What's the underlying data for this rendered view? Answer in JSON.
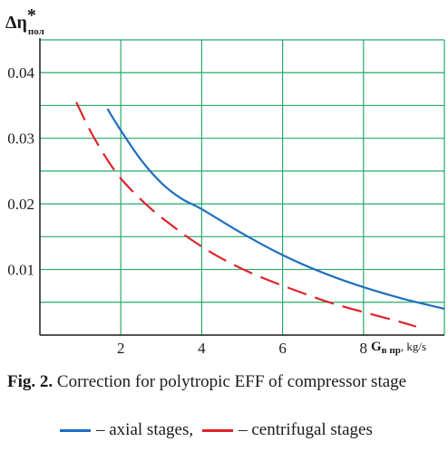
{
  "chart_data": {
    "type": "line",
    "title": "",
    "ylabel": {
      "main": "Δη",
      "sup": "*",
      "sub": "пол"
    },
    "xlabel": {
      "main": "G",
      "sub": "в пр",
      "unit": ", kg/s"
    },
    "xlim": [
      0,
      10
    ],
    "ylim": [
      0,
      0.045
    ],
    "x_ticks": [
      2,
      4,
      6,
      8
    ],
    "x_tick_labels": [
      "2",
      "4",
      "6",
      "8"
    ],
    "y_ticks": [
      0.01,
      0.02,
      0.03,
      0.04
    ],
    "y_tick_labels": [
      "0.01",
      "0.02",
      "0.03",
      "0.04"
    ],
    "x_grid": [
      0,
      2,
      4,
      6,
      8,
      10
    ],
    "y_grid": [
      0.005,
      0.01,
      0.015,
      0.02,
      0.025,
      0.03,
      0.035,
      0.04,
      0.045
    ],
    "grid": true,
    "grid_color": "#2aa86a",
    "legend_position": "bottom",
    "series": [
      {
        "name": "axial stages",
        "color": "#1f6fc0",
        "style": "solid",
        "x": [
          1.67,
          2.0,
          2.5,
          3.0,
          3.5,
          4.0,
          5.0,
          6.0,
          7.0,
          8.0,
          9.0,
          10.0
        ],
        "y": [
          0.0345,
          0.0312,
          0.0267,
          0.0232,
          0.0208,
          0.0192,
          0.0155,
          0.0122,
          0.0095,
          0.0073,
          0.0055,
          0.004
        ]
      },
      {
        "name": "centrifugal stages",
        "color": "#e0232b",
        "style": "dashed",
        "x": [
          0.9,
          1.3,
          1.8,
          2.2,
          2.7,
          3.2,
          3.8,
          4.4,
          5.1,
          5.8,
          6.5,
          7.2,
          8.0,
          8.8,
          9.3
        ],
        "y": [
          0.0355,
          0.0305,
          0.0255,
          0.0225,
          0.0195,
          0.017,
          0.0143,
          0.012,
          0.0098,
          0.008,
          0.0064,
          0.0049,
          0.0035,
          0.0022,
          0.0013
        ]
      }
    ]
  },
  "caption": {
    "label": "Fig. 2.",
    "text": " Correction for polytropic EFF of compressor stage"
  },
  "legend": {
    "axial": "– axial stages,",
    "centrifugal": "– centrifugal stages"
  }
}
